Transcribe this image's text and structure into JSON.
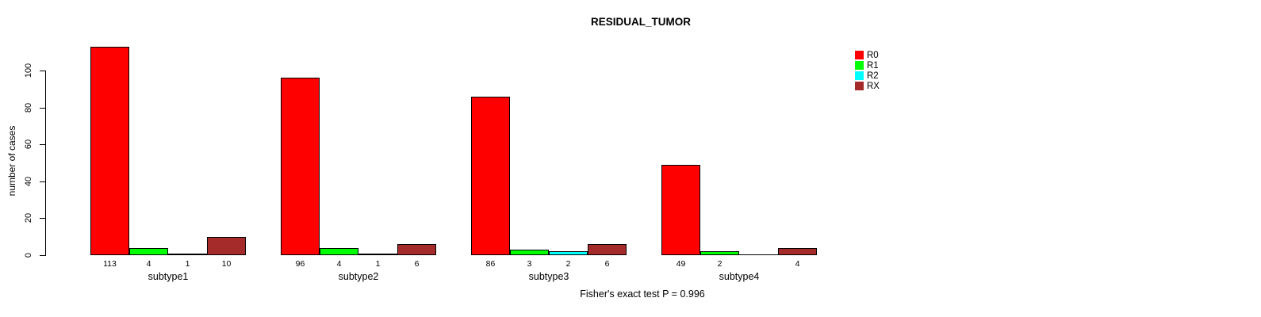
{
  "chart_data": {
    "type": "bar",
    "title": "RESIDUAL_TUMOR",
    "ylabel": "number of cases",
    "xlabel": "",
    "categories": [
      "subtype1",
      "subtype2",
      "subtype3",
      "subtype4"
    ],
    "series": [
      {
        "name": "R0",
        "color": "#FF0000",
        "values": [
          113,
          96,
          86,
          49
        ]
      },
      {
        "name": "R1",
        "color": "#00FF00",
        "values": [
          4,
          4,
          3,
          2
        ]
      },
      {
        "name": "R2",
        "color": "#00FFFF",
        "values": [
          1,
          1,
          2,
          0
        ]
      },
      {
        "name": "RX",
        "color": "#A52A2A",
        "values": [
          10,
          6,
          6,
          4
        ]
      }
    ],
    "yticks": [
      0,
      20,
      40,
      60,
      80,
      100
    ],
    "ylim": [
      0,
      116
    ],
    "grid": false,
    "legend_position": "top-right",
    "bar_value_labels_shown": true,
    "zero_values_unlabeled": true,
    "annotation": "Fisher's exact test P = 0.996",
    "axis_color": "#000000",
    "background_color": "#FFFFFF"
  }
}
